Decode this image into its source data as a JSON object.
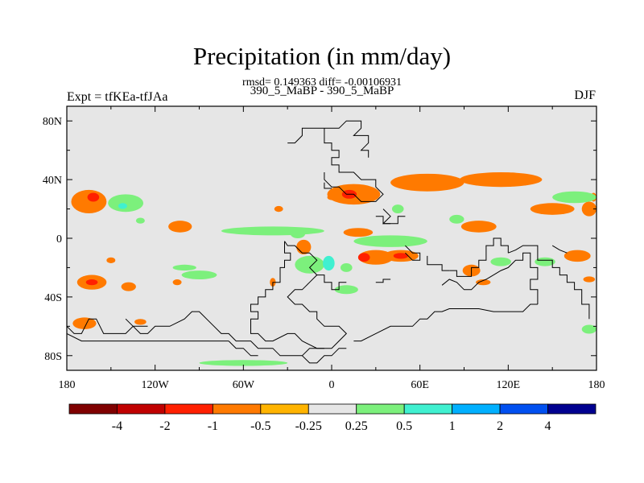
{
  "header": {
    "title": "Precipitation (in mm/day)",
    "stats": "rmsd= 0.149363 diff= -0.00106931",
    "subtitle": "390_5_MaBP - 390_5_MaBP",
    "left_label": "Expt = tfKEa-tfJAa",
    "right_label": "DJF"
  },
  "axes": {
    "x_ticks": [
      "180",
      "120W",
      "60W",
      "0",
      "60E",
      "120E",
      "180"
    ],
    "y_ticks": [
      "80N",
      "40N",
      "0",
      "40S",
      "80S"
    ],
    "x_lon_values": [
      -180,
      -120,
      -60,
      0,
      60,
      120,
      180
    ],
    "y_lat_values": [
      80,
      40,
      0,
      -40,
      -80
    ],
    "lon_range": [
      -180,
      180
    ],
    "lat_range": [
      -90,
      90
    ]
  },
  "colorbar": {
    "colors": [
      "#800000",
      "#c00000",
      "#ff2000",
      "#ff7a00",
      "#ffb400",
      "#e6e6e6",
      "#7cf07c",
      "#40f0d0",
      "#00b0ff",
      "#0050f0",
      "#000090"
    ],
    "labels": [
      "-4",
      "-2",
      "-1",
      "-0.5",
      "-0.25",
      "0.25",
      "0.5",
      "1",
      "2",
      "4"
    ]
  },
  "map": {
    "background_color": "#e6e6e6",
    "anomaly_patches": [
      {
        "lon": 115,
        "lat": 40,
        "rx": 28,
        "ry": 5,
        "level": "-0.5"
      },
      {
        "lon": 65,
        "lat": 38,
        "rx": 25,
        "ry": 6,
        "level": "-0.5"
      },
      {
        "lon": 15,
        "lat": 30,
        "rx": 18,
        "ry": 7,
        "level": "-0.5"
      },
      {
        "lon": 12,
        "lat": 30,
        "rx": 5,
        "ry": 3,
        "level": "-1"
      },
      {
        "lon": 18,
        "lat": 4,
        "rx": 10,
        "ry": 3,
        "level": "-0.5"
      },
      {
        "lon": 100,
        "lat": 8,
        "rx": 12,
        "ry": 4,
        "level": "-0.5"
      },
      {
        "lon": 150,
        "lat": 20,
        "rx": 15,
        "ry": 4,
        "level": "-0.5"
      },
      {
        "lon": 175,
        "lat": 20,
        "rx": 5,
        "ry": 5,
        "level": "-0.5"
      },
      {
        "lon": 178,
        "lat": 28,
        "rx": 2,
        "ry": 3,
        "level": "-0.5"
      },
      {
        "lon": -165,
        "lat": 25,
        "rx": 12,
        "ry": 8,
        "level": "-0.5"
      },
      {
        "lon": -162,
        "lat": 28,
        "rx": 4,
        "ry": 3,
        "level": "-1"
      },
      {
        "lon": -103,
        "lat": 8,
        "rx": 8,
        "ry": 4,
        "level": "-0.5"
      },
      {
        "lon": -36,
        "lat": 20,
        "rx": 3,
        "ry": 2,
        "level": "-0.5"
      },
      {
        "lon": 0,
        "lat": 28,
        "rx": 3,
        "ry": 2,
        "level": "-0.5"
      },
      {
        "lon": -19,
        "lat": -6,
        "rx": 5,
        "ry": 5,
        "level": "-0.5"
      },
      {
        "lon": 30,
        "lat": -13,
        "rx": 12,
        "ry": 5,
        "level": "-0.5"
      },
      {
        "lon": 22,
        "lat": -13,
        "rx": 4,
        "ry": 3,
        "level": "-1"
      },
      {
        "lon": 47,
        "lat": -12,
        "rx": 12,
        "ry": 4,
        "level": "-0.5"
      },
      {
        "lon": 47,
        "lat": -12,
        "rx": 5,
        "ry": 2,
        "level": "-1"
      },
      {
        "lon": 95,
        "lat": -22,
        "rx": 6,
        "ry": 4,
        "level": "-0.5"
      },
      {
        "lon": 103,
        "lat": -30,
        "rx": 5,
        "ry": 2,
        "level": "-0.5"
      },
      {
        "lon": 167,
        "lat": -12,
        "rx": 9,
        "ry": 4,
        "level": "-0.5"
      },
      {
        "lon": 175,
        "lat": -28,
        "rx": 4,
        "ry": 2,
        "level": "-0.5"
      },
      {
        "lon": -163,
        "lat": -30,
        "rx": 10,
        "ry": 5,
        "level": "-0.5"
      },
      {
        "lon": -163,
        "lat": -30,
        "rx": 4,
        "ry": 2,
        "level": "-1"
      },
      {
        "lon": -138,
        "lat": -33,
        "rx": 5,
        "ry": 3,
        "level": "-0.5"
      },
      {
        "lon": -168,
        "lat": -58,
        "rx": 8,
        "ry": 4,
        "level": "-0.5"
      },
      {
        "lon": -150,
        "lat": -15,
        "rx": 3,
        "ry": 2,
        "level": "-0.5"
      },
      {
        "lon": -105,
        "lat": -30,
        "rx": 3,
        "ry": 2,
        "level": "-0.5"
      },
      {
        "lon": -130,
        "lat": -57,
        "rx": 4,
        "ry": 2,
        "level": "-0.5"
      },
      {
        "lon": -40,
        "lat": -30,
        "rx": 2,
        "ry": 3,
        "level": "-0.5"
      },
      {
        "lon": -140,
        "lat": 24,
        "rx": 12,
        "ry": 6,
        "level": "0.25"
      },
      {
        "lon": -142,
        "lat": 22,
        "rx": 3,
        "ry": 2,
        "level": "0.5"
      },
      {
        "lon": -40,
        "lat": 5,
        "rx": 35,
        "ry": 3,
        "level": "0.25"
      },
      {
        "lon": -23,
        "lat": 3,
        "rx": 5,
        "ry": 3,
        "level": "0.25"
      },
      {
        "lon": 40,
        "lat": -2,
        "rx": 25,
        "ry": 4,
        "level": "0.25"
      },
      {
        "lon": 45,
        "lat": 20,
        "rx": 4,
        "ry": 3,
        "level": "0.25"
      },
      {
        "lon": 85,
        "lat": 13,
        "rx": 5,
        "ry": 3,
        "level": "0.25"
      },
      {
        "lon": 165,
        "lat": 28,
        "rx": 15,
        "ry": 4,
        "level": "0.25"
      },
      {
        "lon": 115,
        "lat": -16,
        "rx": 7,
        "ry": 3,
        "level": "0.25"
      },
      {
        "lon": 145,
        "lat": -16,
        "rx": 7,
        "ry": 3,
        "level": "0.25"
      },
      {
        "lon": 175,
        "lat": -62,
        "rx": 5,
        "ry": 3,
        "level": "0.25"
      },
      {
        "lon": -15,
        "lat": -18,
        "rx": 10,
        "ry": 6,
        "level": "0.25"
      },
      {
        "lon": -2,
        "lat": -17,
        "rx": 4,
        "ry": 5,
        "level": "0.5"
      },
      {
        "lon": 10,
        "lat": -35,
        "rx": 8,
        "ry": 3,
        "level": "0.25"
      },
      {
        "lon": 10,
        "lat": -20,
        "rx": 4,
        "ry": 3,
        "level": "0.25"
      },
      {
        "lon": -90,
        "lat": -25,
        "rx": 12,
        "ry": 3,
        "level": "0.25"
      },
      {
        "lon": -100,
        "lat": -20,
        "rx": 8,
        "ry": 2,
        "level": "0.25"
      },
      {
        "lon": -60,
        "lat": -85,
        "rx": 30,
        "ry": 2,
        "level": "0.25"
      },
      {
        "lon": -130,
        "lat": 12,
        "rx": 3,
        "ry": 2,
        "level": "0.25"
      }
    ],
    "coastlines": [
      [
        [
          -5,
          75
        ],
        [
          -5,
          65
        ],
        [
          0,
          65
        ],
        [
          0,
          60
        ],
        [
          5,
          60
        ],
        [
          5,
          55
        ],
        [
          0,
          55
        ],
        [
          0,
          50
        ],
        [
          5,
          50
        ],
        [
          5,
          45
        ],
        [
          15,
          45
        ],
        [
          20,
          40
        ],
        [
          30,
          40
        ],
        [
          30,
          35
        ],
        [
          35,
          30
        ],
        [
          30,
          25
        ],
        [
          20,
          25
        ],
        [
          15,
          30
        ],
        [
          10,
          30
        ],
        [
          5,
          35
        ],
        [
          0,
          35
        ],
        [
          -5,
          40
        ],
        [
          -5,
          45
        ]
      ],
      [
        [
          -5,
          75
        ],
        [
          5,
          75
        ],
        [
          10,
          80
        ],
        [
          20,
          80
        ],
        [
          20,
          75
        ],
        [
          15,
          70
        ],
        [
          25,
          70
        ],
        [
          25,
          65
        ],
        [
          20,
          60
        ],
        [
          25,
          60
        ],
        [
          25,
          55
        ]
      ],
      [
        [
          -5,
          75
        ],
        [
          -20,
          75
        ],
        [
          -20,
          70
        ],
        [
          -25,
          65
        ],
        [
          -30,
          65
        ]
      ],
      [
        [
          35,
          20
        ],
        [
          40,
          15
        ],
        [
          35,
          10
        ],
        [
          45,
          10
        ],
        [
          45,
          15
        ],
        [
          50,
          15
        ]
      ],
      [
        [
          -32,
          -2
        ],
        [
          -32,
          -10
        ],
        [
          -28,
          -10
        ],
        [
          -28,
          -15
        ],
        [
          -32,
          -15
        ],
        [
          -32,
          -20
        ],
        [
          -35,
          -20
        ],
        [
          -35,
          -30
        ],
        [
          -40,
          -30
        ],
        [
          -40,
          -35
        ],
        [
          -45,
          -35
        ],
        [
          -45,
          -40
        ],
        [
          -50,
          -40
        ],
        [
          -50,
          -45
        ],
        [
          -55,
          -45
        ],
        [
          -55,
          -50
        ],
        [
          -50,
          -50
        ],
        [
          -50,
          -55
        ],
        [
          -55,
          -55
        ],
        [
          -55,
          -60
        ],
        [
          -55,
          -65
        ],
        [
          -50,
          -65
        ],
        [
          -45,
          -70
        ],
        [
          -40,
          -70
        ],
        [
          -30,
          -65
        ],
        [
          -25,
          -65
        ],
        [
          -20,
          -70
        ],
        [
          -10,
          -75
        ],
        [
          0,
          -75
        ],
        [
          5,
          -70
        ],
        [
          10,
          -65
        ],
        [
          5,
          -60
        ],
        [
          -5,
          -60
        ],
        [
          -10,
          -55
        ],
        [
          -10,
          -50
        ],
        [
          -15,
          -50
        ],
        [
          -20,
          -45
        ],
        [
          -25,
          -45
        ],
        [
          -30,
          -40
        ],
        [
          -25,
          -35
        ],
        [
          -20,
          -35
        ],
        [
          -15,
          -30
        ],
        [
          -10,
          -25
        ],
        [
          -15,
          -20
        ],
        [
          -10,
          -15
        ],
        [
          -15,
          -10
        ],
        [
          -20,
          -10
        ],
        [
          -25,
          -5
        ],
        [
          -30,
          -5
        ],
        [
          -32,
          -2
        ]
      ],
      [
        [
          -10,
          -25
        ],
        [
          -5,
          -25
        ],
        [
          -5,
          -30
        ],
        [
          0,
          -30
        ],
        [
          0,
          -35
        ],
        [
          5,
          -35
        ],
        [
          5,
          -30
        ],
        [
          10,
          -30
        ]
      ],
      [
        [
          50,
          -5
        ],
        [
          55,
          -10
        ],
        [
          60,
          -10
        ],
        [
          60,
          -15
        ],
        [
          55,
          -15
        ],
        [
          50,
          -10
        ]
      ],
      [
        [
          65,
          -12
        ],
        [
          65,
          -18
        ],
        [
          75,
          -18
        ],
        [
          75,
          -22
        ],
        [
          80,
          -22
        ]
      ],
      [
        [
          80,
          -22
        ],
        [
          85,
          -22
        ],
        [
          85,
          -26
        ],
        [
          95,
          -26
        ],
        [
          95,
          -20
        ],
        [
          100,
          -20
        ],
        [
          100,
          -15
        ],
        [
          105,
          -15
        ],
        [
          105,
          -5
        ],
        [
          110,
          -5
        ],
        [
          110,
          0
        ],
        [
          115,
          0
        ],
        [
          115,
          -5
        ],
        [
          120,
          -5
        ],
        [
          120,
          -10
        ]
      ],
      [
        [
          75,
          -32
        ],
        [
          80,
          -28
        ],
        [
          85,
          -30
        ],
        [
          90,
          -35
        ],
        [
          95,
          -35
        ],
        [
          100,
          -30
        ],
        [
          105,
          -28
        ],
        [
          110,
          -25
        ],
        [
          115,
          -22
        ],
        [
          120,
          -20
        ],
        [
          125,
          -15
        ],
        [
          130,
          -15
        ],
        [
          130,
          -10
        ],
        [
          135,
          -10
        ],
        [
          135,
          -20
        ],
        [
          140,
          -20
        ],
        [
          140,
          -28
        ],
        [
          135,
          -28
        ],
        [
          135,
          -35
        ],
        [
          140,
          -35
        ],
        [
          140,
          -45
        ]
      ],
      [
        [
          140,
          -45
        ],
        [
          135,
          -45
        ],
        [
          130,
          -50
        ],
        [
          110,
          -50
        ],
        [
          100,
          -48
        ],
        [
          80,
          -48
        ],
        [
          75,
          -50
        ],
        [
          70,
          -50
        ],
        [
          65,
          -55
        ],
        [
          60,
          -55
        ],
        [
          55,
          -60
        ],
        [
          50,
          -60
        ],
        [
          40,
          -60
        ],
        [
          30,
          -65
        ],
        [
          20,
          -70
        ],
        [
          15,
          -70
        ]
      ],
      [
        [
          120,
          -10
        ],
        [
          125,
          -8
        ],
        [
          130,
          -5
        ],
        [
          135,
          -5
        ],
        [
          140,
          -5
        ],
        [
          140,
          -15
        ],
        [
          150,
          -15
        ],
        [
          150,
          -20
        ],
        [
          155,
          -20
        ],
        [
          155,
          -25
        ],
        [
          160,
          -25
        ],
        [
          160,
          -30
        ],
        [
          165,
          -30
        ],
        [
          165,
          -35
        ],
        [
          170,
          -35
        ],
        [
          170,
          -45
        ],
        [
          175,
          -45
        ],
        [
          175,
          -55
        ]
      ],
      [
        [
          150,
          -5
        ],
        [
          155,
          -8
        ],
        [
          160,
          -10
        ]
      ],
      [
        [
          -180,
          -60
        ],
        [
          -175,
          -65
        ],
        [
          -170,
          -65
        ],
        [
          -165,
          -55
        ],
        [
          -160,
          -55
        ],
        [
          -155,
          -65
        ],
        [
          -140,
          -65
        ],
        [
          -135,
          -60
        ],
        [
          -130,
          -65
        ],
        [
          -125,
          -65
        ],
        [
          -120,
          -60
        ],
        [
          -115,
          -60
        ],
        [
          -110,
          -60
        ],
        [
          -100,
          -55
        ],
        [
          -95,
          -50
        ],
        [
          -90,
          -50
        ],
        [
          -85,
          -55
        ],
        [
          -80,
          -60
        ],
        [
          -75,
          -65
        ],
        [
          -70,
          -65
        ],
        [
          -65,
          -70
        ],
        [
          -55,
          -70
        ],
        [
          -50,
          -75
        ],
        [
          -40,
          -75
        ],
        [
          -35,
          -80
        ],
        [
          -30,
          -80
        ],
        [
          -20,
          -80
        ],
        [
          -15,
          -75
        ],
        [
          -5,
          -75
        ]
      ],
      [
        [
          -180,
          -65
        ],
        [
          -170,
          -70
        ],
        [
          -160,
          -70
        ],
        [
          -150,
          -70
        ],
        [
          -140,
          -70
        ],
        [
          -130,
          -70
        ],
        [
          -120,
          -70
        ],
        [
          -110,
          -70
        ],
        [
          -100,
          -70
        ],
        [
          -90,
          -70
        ],
        [
          -80,
          -70
        ],
        [
          -70,
          -70
        ]
      ],
      [
        [
          -140,
          -55
        ],
        [
          -135,
          -60
        ],
        [
          -125,
          -60
        ]
      ],
      [
        [
          -70,
          -70
        ],
        [
          -65,
          -75
        ],
        [
          -60,
          -75
        ],
        [
          -55,
          -80
        ],
        [
          -50,
          -80
        ]
      ],
      [
        [
          -20,
          -80
        ],
        [
          -15,
          -85
        ],
        [
          -10,
          -85
        ],
        [
          -5,
          -80
        ],
        [
          0,
          -80
        ],
        [
          5,
          -75
        ],
        [
          10,
          -75
        ]
      ],
      [
        [
          30,
          -30
        ],
        [
          35,
          -30
        ],
        [
          35,
          -28
        ],
        [
          40,
          -28
        ]
      ],
      [
        [
          -5,
          38
        ],
        [
          -5,
          34
        ],
        [
          0,
          34
        ]
      ],
      [
        [
          30,
          15
        ],
        [
          35,
          15
        ],
        [
          35,
          10
        ],
        [
          40,
          10
        ]
      ]
    ]
  }
}
